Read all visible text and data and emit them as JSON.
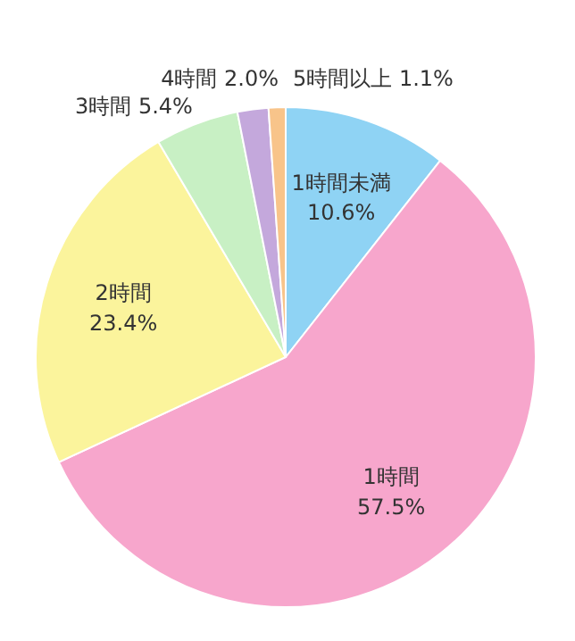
{
  "chart_data": {
    "type": "pie",
    "categories": [
      "1時間未満",
      "1時間",
      "2時間",
      "3時間",
      "4時間",
      "5時間以上"
    ],
    "values": [
      10.6,
      57.5,
      23.4,
      5.4,
      2.0,
      1.1
    ],
    "value_labels": [
      "10.6%",
      "57.5%",
      "23.4%",
      "5.4%",
      "2.0%",
      "1.1%"
    ],
    "colors": [
      "#8fd3f4",
      "#f7a6cc",
      "#fbf49c",
      "#c8f0c4",
      "#c4a8dc",
      "#f8c48a"
    ]
  }
}
